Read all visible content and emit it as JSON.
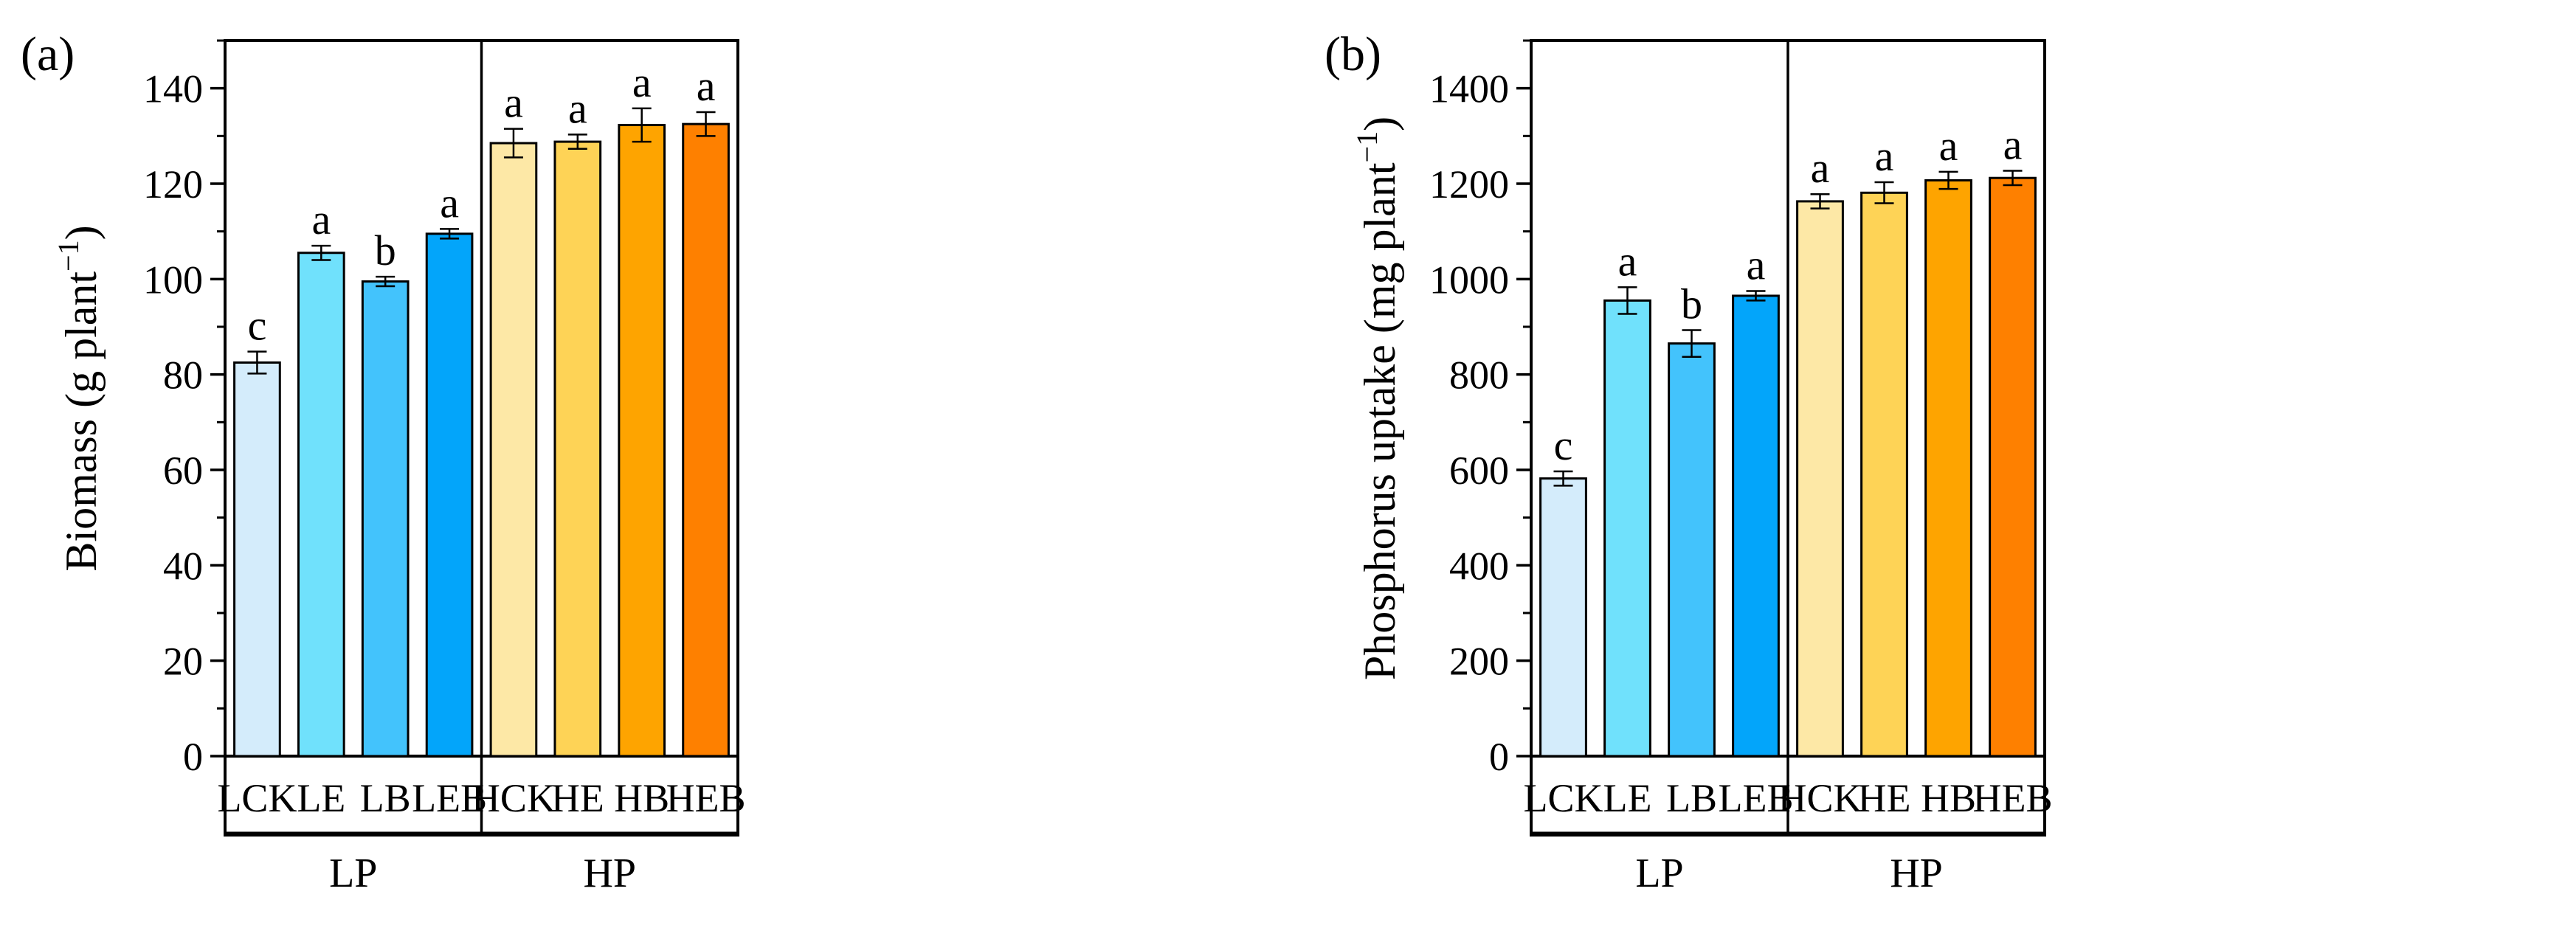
{
  "colors": {
    "LCK": "#d4ecfb",
    "LE": "#70e1fc",
    "LB": "#43c3fc",
    "LEB": "#03a5fa",
    "HCK": "#fde8a6",
    "HE": "#fed356",
    "HB": "#fea400",
    "HEB": "#fe8000",
    "group_band": "#dcecfa"
  },
  "chart_data": [
    {
      "type": "bar",
      "panel_label": "(a)",
      "ylabel_main": "Biomass (g plant",
      "ylabel_sup": "−1",
      "ylabel_close": ")",
      "ylim": [
        0,
        150
      ],
      "yticks": [
        0,
        20,
        40,
        60,
        80,
        100,
        120,
        140
      ],
      "ytick_labels": [
        "0",
        "20",
        "40",
        "60",
        "80",
        "100",
        "120",
        "140"
      ],
      "categories": [
        "LCK",
        "LE",
        "LB",
        "LEB",
        "HCK",
        "HE",
        "HB",
        "HEB"
      ],
      "values": [
        82.5,
        105.5,
        99.5,
        109.5,
        128.5,
        128.8,
        132.3,
        132.5
      ],
      "errors": [
        2.3,
        1.5,
        1.0,
        1.0,
        3.0,
        1.5,
        3.5,
        2.5
      ],
      "significance": [
        "c",
        "a",
        "b",
        "a",
        "a",
        "a",
        "a",
        "a"
      ],
      "groups": [
        {
          "label": "LP",
          "count": 4
        },
        {
          "label": "HP",
          "count": 4
        }
      ]
    },
    {
      "type": "bar",
      "panel_label": "(b)",
      "ylabel_main": "Phosphorus uptake (mg plant",
      "ylabel_sup": "−1",
      "ylabel_close": ")",
      "ylim": [
        0,
        1500
      ],
      "yticks": [
        0,
        200,
        400,
        600,
        800,
        1000,
        1200,
        1400
      ],
      "ytick_labels": [
        "0",
        "200",
        "400",
        "600",
        "800",
        "1000",
        "1200",
        "1400"
      ],
      "categories": [
        "LCK",
        "LE",
        "LB",
        "LEB",
        "HCK",
        "HE",
        "HB",
        "HEB"
      ],
      "values": [
        582,
        955,
        865,
        965,
        1163,
        1181,
        1207,
        1212
      ],
      "errors": [
        15,
        28,
        28,
        10,
        15,
        22,
        18,
        15
      ],
      "significance": [
        "c",
        "a",
        "b",
        "a",
        "a",
        "a",
        "a",
        "a"
      ],
      "groups": [
        {
          "label": "LP",
          "count": 4
        },
        {
          "label": "HP",
          "count": 4
        }
      ]
    }
  ]
}
